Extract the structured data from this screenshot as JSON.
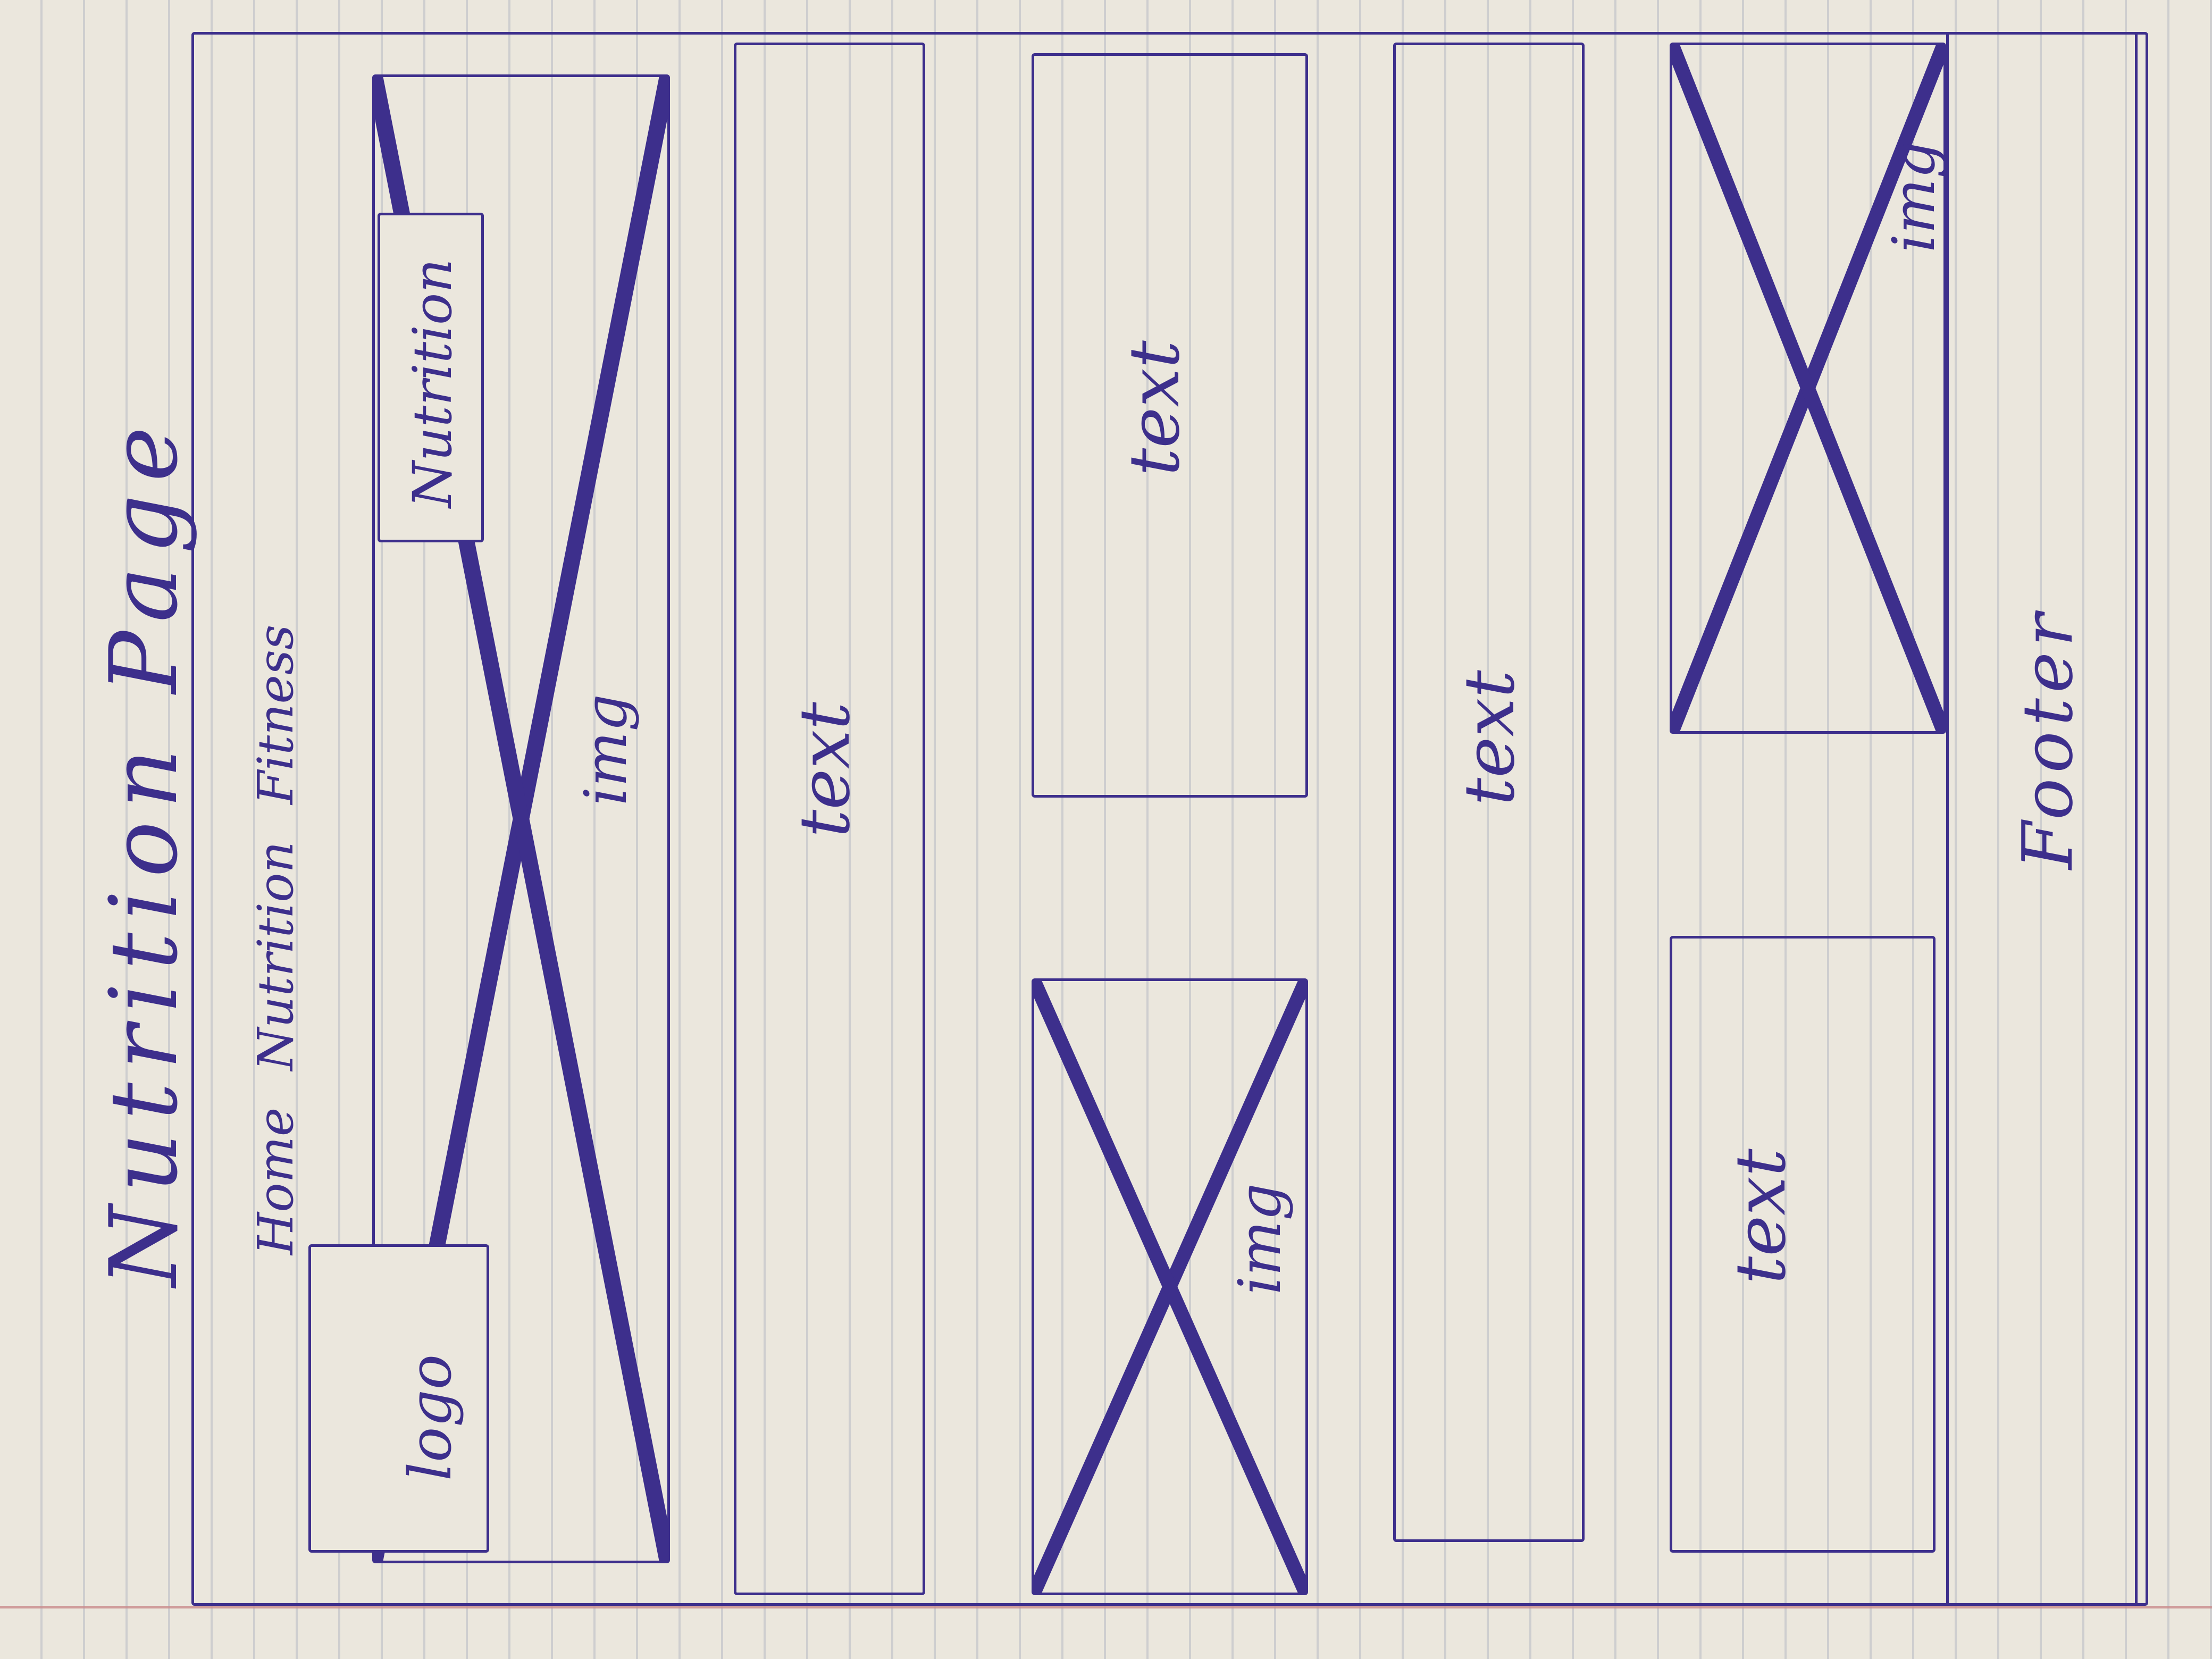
{
  "page_title": "Nutrition Page",
  "nav": {
    "items": [
      {
        "label": "Home"
      },
      {
        "label": "Nutrition"
      },
      {
        "label": "Fitness"
      }
    ]
  },
  "hero": {
    "logo_label": "logo",
    "tab_label": "Nutrition",
    "image_label": "img"
  },
  "sections": {
    "text_1": "text",
    "split_1": {
      "image_label": "img",
      "text_label": "text"
    },
    "text_2": "text",
    "split_2": {
      "text_label": "text",
      "image_label": "img"
    }
  },
  "footer": {
    "label": "Footer"
  },
  "colors": {
    "ink": "#3d2f8c",
    "paper": "#ebe7dd",
    "margin": "#c98b8b"
  }
}
